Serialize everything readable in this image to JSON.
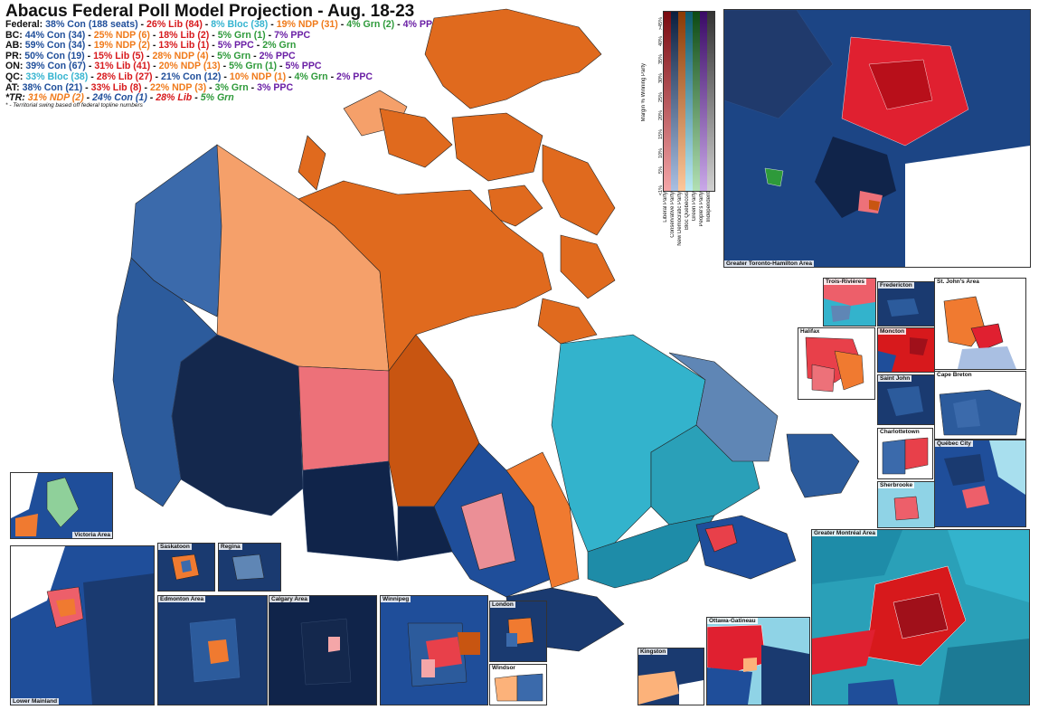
{
  "title": "Abacus Federal Poll Model Projection - Aug. 18-23",
  "results": [
    {
      "label": "Federal:",
      "parts": [
        {
          "t": "38% Con (188 seats)",
          "c": "#1f4e9a"
        },
        {
          "t": "26% Lib (84)",
          "c": "#d7191c"
        },
        {
          "t": "8% Bloc (38)",
          "c": "#35b4d0"
        },
        {
          "t": "19% NDP (31)",
          "c": "#f07a1a"
        },
        {
          "t": "4% Grn (2)",
          "c": "#2e9a3a"
        },
        {
          "t": "4% PPC",
          "c": "#6a1fa5"
        }
      ]
    },
    {
      "label": "BC:",
      "parts": [
        {
          "t": "44% Con (34)",
          "c": "#1f4e9a"
        },
        {
          "t": "25% NDP (6)",
          "c": "#f07a1a"
        },
        {
          "t": "18% Lib (2)",
          "c": "#d7191c"
        },
        {
          "t": "5% Grn (1)",
          "c": "#2e9a3a"
        },
        {
          "t": "7% PPC",
          "c": "#6a1fa5"
        }
      ]
    },
    {
      "label": "AB:",
      "parts": [
        {
          "t": "59% Con (34)",
          "c": "#1f4e9a"
        },
        {
          "t": "19% NDP (2)",
          "c": "#f07a1a"
        },
        {
          "t": "13% Lib (1)",
          "c": "#d7191c"
        },
        {
          "t": "5% PPC",
          "c": "#6a1fa5"
        },
        {
          "t": "2% Grn",
          "c": "#2e9a3a"
        }
      ]
    },
    {
      "label": "PR:",
      "parts": [
        {
          "t": "50% Con (19)",
          "c": "#1f4e9a"
        },
        {
          "t": "15% Lib (5)",
          "c": "#d7191c"
        },
        {
          "t": "28% NDP (4)",
          "c": "#f07a1a"
        },
        {
          "t": "5% Grn",
          "c": "#2e9a3a"
        },
        {
          "t": "2% PPC",
          "c": "#6a1fa5"
        }
      ]
    },
    {
      "label": "ON:",
      "parts": [
        {
          "t": "39% Con (67)",
          "c": "#1f4e9a"
        },
        {
          "t": "31% Lib (41)",
          "c": "#d7191c"
        },
        {
          "t": "20% NDP (13)",
          "c": "#f07a1a"
        },
        {
          "t": "5% Grn (1)",
          "c": "#2e9a3a"
        },
        {
          "t": "5% PPC",
          "c": "#6a1fa5"
        }
      ]
    },
    {
      "label": "QC:",
      "parts": [
        {
          "t": "33% Bloc (38)",
          "c": "#35b4d0"
        },
        {
          "t": "28% Lib (27)",
          "c": "#d7191c"
        },
        {
          "t": "21% Con (12)",
          "c": "#1f4e9a"
        },
        {
          "t": "10% NDP (1)",
          "c": "#f07a1a"
        },
        {
          "t": "4% Grn",
          "c": "#2e9a3a"
        },
        {
          "t": "2% PPC",
          "c": "#6a1fa5"
        }
      ]
    },
    {
      "label": "AT:",
      "parts": [
        {
          "t": "38% Con (21)",
          "c": "#1f4e9a"
        },
        {
          "t": "33% Lib (8)",
          "c": "#d7191c"
        },
        {
          "t": "22% NDP (3)",
          "c": "#f07a1a"
        },
        {
          "t": "3% Grn",
          "c": "#2e9a3a"
        },
        {
          "t": "3% PPC",
          "c": "#6a1fa5"
        }
      ]
    },
    {
      "label": "*TR:",
      "italic": true,
      "parts": [
        {
          "t": "31% NDP (2)",
          "c": "#f07a1a"
        },
        {
          "t": "24% Con (1)",
          "c": "#1f4e9a"
        },
        {
          "t": "28% Lib",
          "c": "#d7191c"
        },
        {
          "t": "5% Grn",
          "c": "#2e9a3a"
        }
      ]
    }
  ],
  "footnote": "* - Territorial swing based off federal topline numbers",
  "legend": {
    "title": "Margin % Winning Party",
    "ticks": [
      "<1%",
      "5%",
      "10%",
      "15%",
      "20%",
      "25%",
      "30%",
      "35%",
      "40%",
      ">45%"
    ],
    "parties": [
      {
        "name": "Liberal Party",
        "light": "#f4a6a8",
        "dark": "#7a0a10"
      },
      {
        "name": "Conservative Party",
        "light": "#a9bfe2",
        "dark": "#0b1f3f"
      },
      {
        "name": "New Democratic Party",
        "light": "#fcc79a",
        "dark": "#8a3a05"
      },
      {
        "name": "Bloc Québécois",
        "light": "#b9e8f2",
        "dark": "#0b5a6e"
      },
      {
        "name": "Green Party",
        "light": "#b2e0b4",
        "dark": "#0d4a14"
      },
      {
        "name": "People's Party",
        "light": "#c9a8e8",
        "dark": "#3a0a66"
      },
      {
        "name": "Independent",
        "light": "#d0d0d0",
        "dark": "#333333"
      }
    ]
  },
  "insets": {
    "toronto": "Greater Toronto-Hamilton Area",
    "trois_rivieres": "Trois-Rivières",
    "fredericton": "Fredericton",
    "st_johns": "St. John's Area",
    "halifax": "Halifax",
    "moncton": "Moncton",
    "saint_john": "Saint John",
    "cape_breton": "Cape Breton",
    "charlottetown": "Charlottetown",
    "quebec_city": "Québec City",
    "sherbrooke": "Sherbrooke",
    "montreal": "Greater Montréal Area",
    "victoria": "Victoria Area",
    "lower_mainland": "Lower Mainland",
    "saskatoon": "Saskatoon",
    "regina": "Regina",
    "edmonton": "Edmonton Area",
    "calgary": "Calgary Area",
    "winnipeg": "Winnipeg",
    "london": "London",
    "windsor": "Windsor",
    "ottawa": "Ottawa-Gatineau",
    "kingston": "Kingston"
  }
}
